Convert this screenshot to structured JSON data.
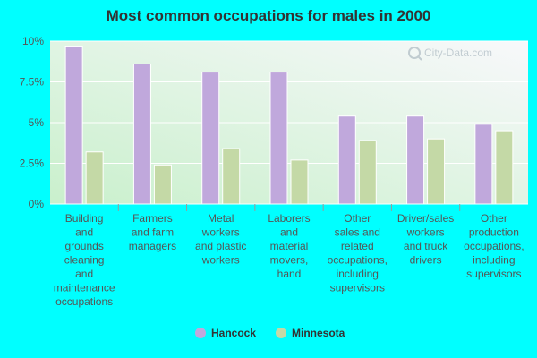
{
  "chart_data": {
    "type": "bar",
    "title": "Most common occupations for males in 2000",
    "xlabel": "",
    "ylabel": "",
    "ylim": [
      0,
      10
    ],
    "yticks": [
      "0%",
      "2.5%",
      "5%",
      "7.5%",
      "10%"
    ],
    "ytick_values": [
      0,
      2.5,
      5,
      7.5,
      10
    ],
    "categories": [
      [
        "Building",
        "and",
        "grounds",
        "cleaning",
        "and",
        "maintenance",
        "occupations"
      ],
      [
        "Farmers",
        "and farm",
        "managers"
      ],
      [
        "Metal",
        "workers",
        "and plastic",
        "workers"
      ],
      [
        "Laborers",
        "and",
        "material",
        "movers,",
        "hand"
      ],
      [
        "Other",
        "sales and",
        "related",
        "occupations,",
        "including",
        "supervisors"
      ],
      [
        "Driver/sales",
        "workers",
        "and truck",
        "drivers"
      ],
      [
        "Other",
        "production",
        "occupations,",
        "including",
        "supervisors"
      ]
    ],
    "series": [
      {
        "name": "Hancock",
        "color": "#c0a8dc",
        "values": [
          9.7,
          8.6,
          8.1,
          8.1,
          5.4,
          5.4,
          4.9
        ]
      },
      {
        "name": "Minnesota",
        "color": "#c4d9a6",
        "values": [
          3.2,
          2.4,
          3.4,
          2.7,
          3.9,
          4.0,
          4.5
        ]
      }
    ],
    "legend_position": "bottom",
    "grid": true
  },
  "watermark": "City-Data.com"
}
